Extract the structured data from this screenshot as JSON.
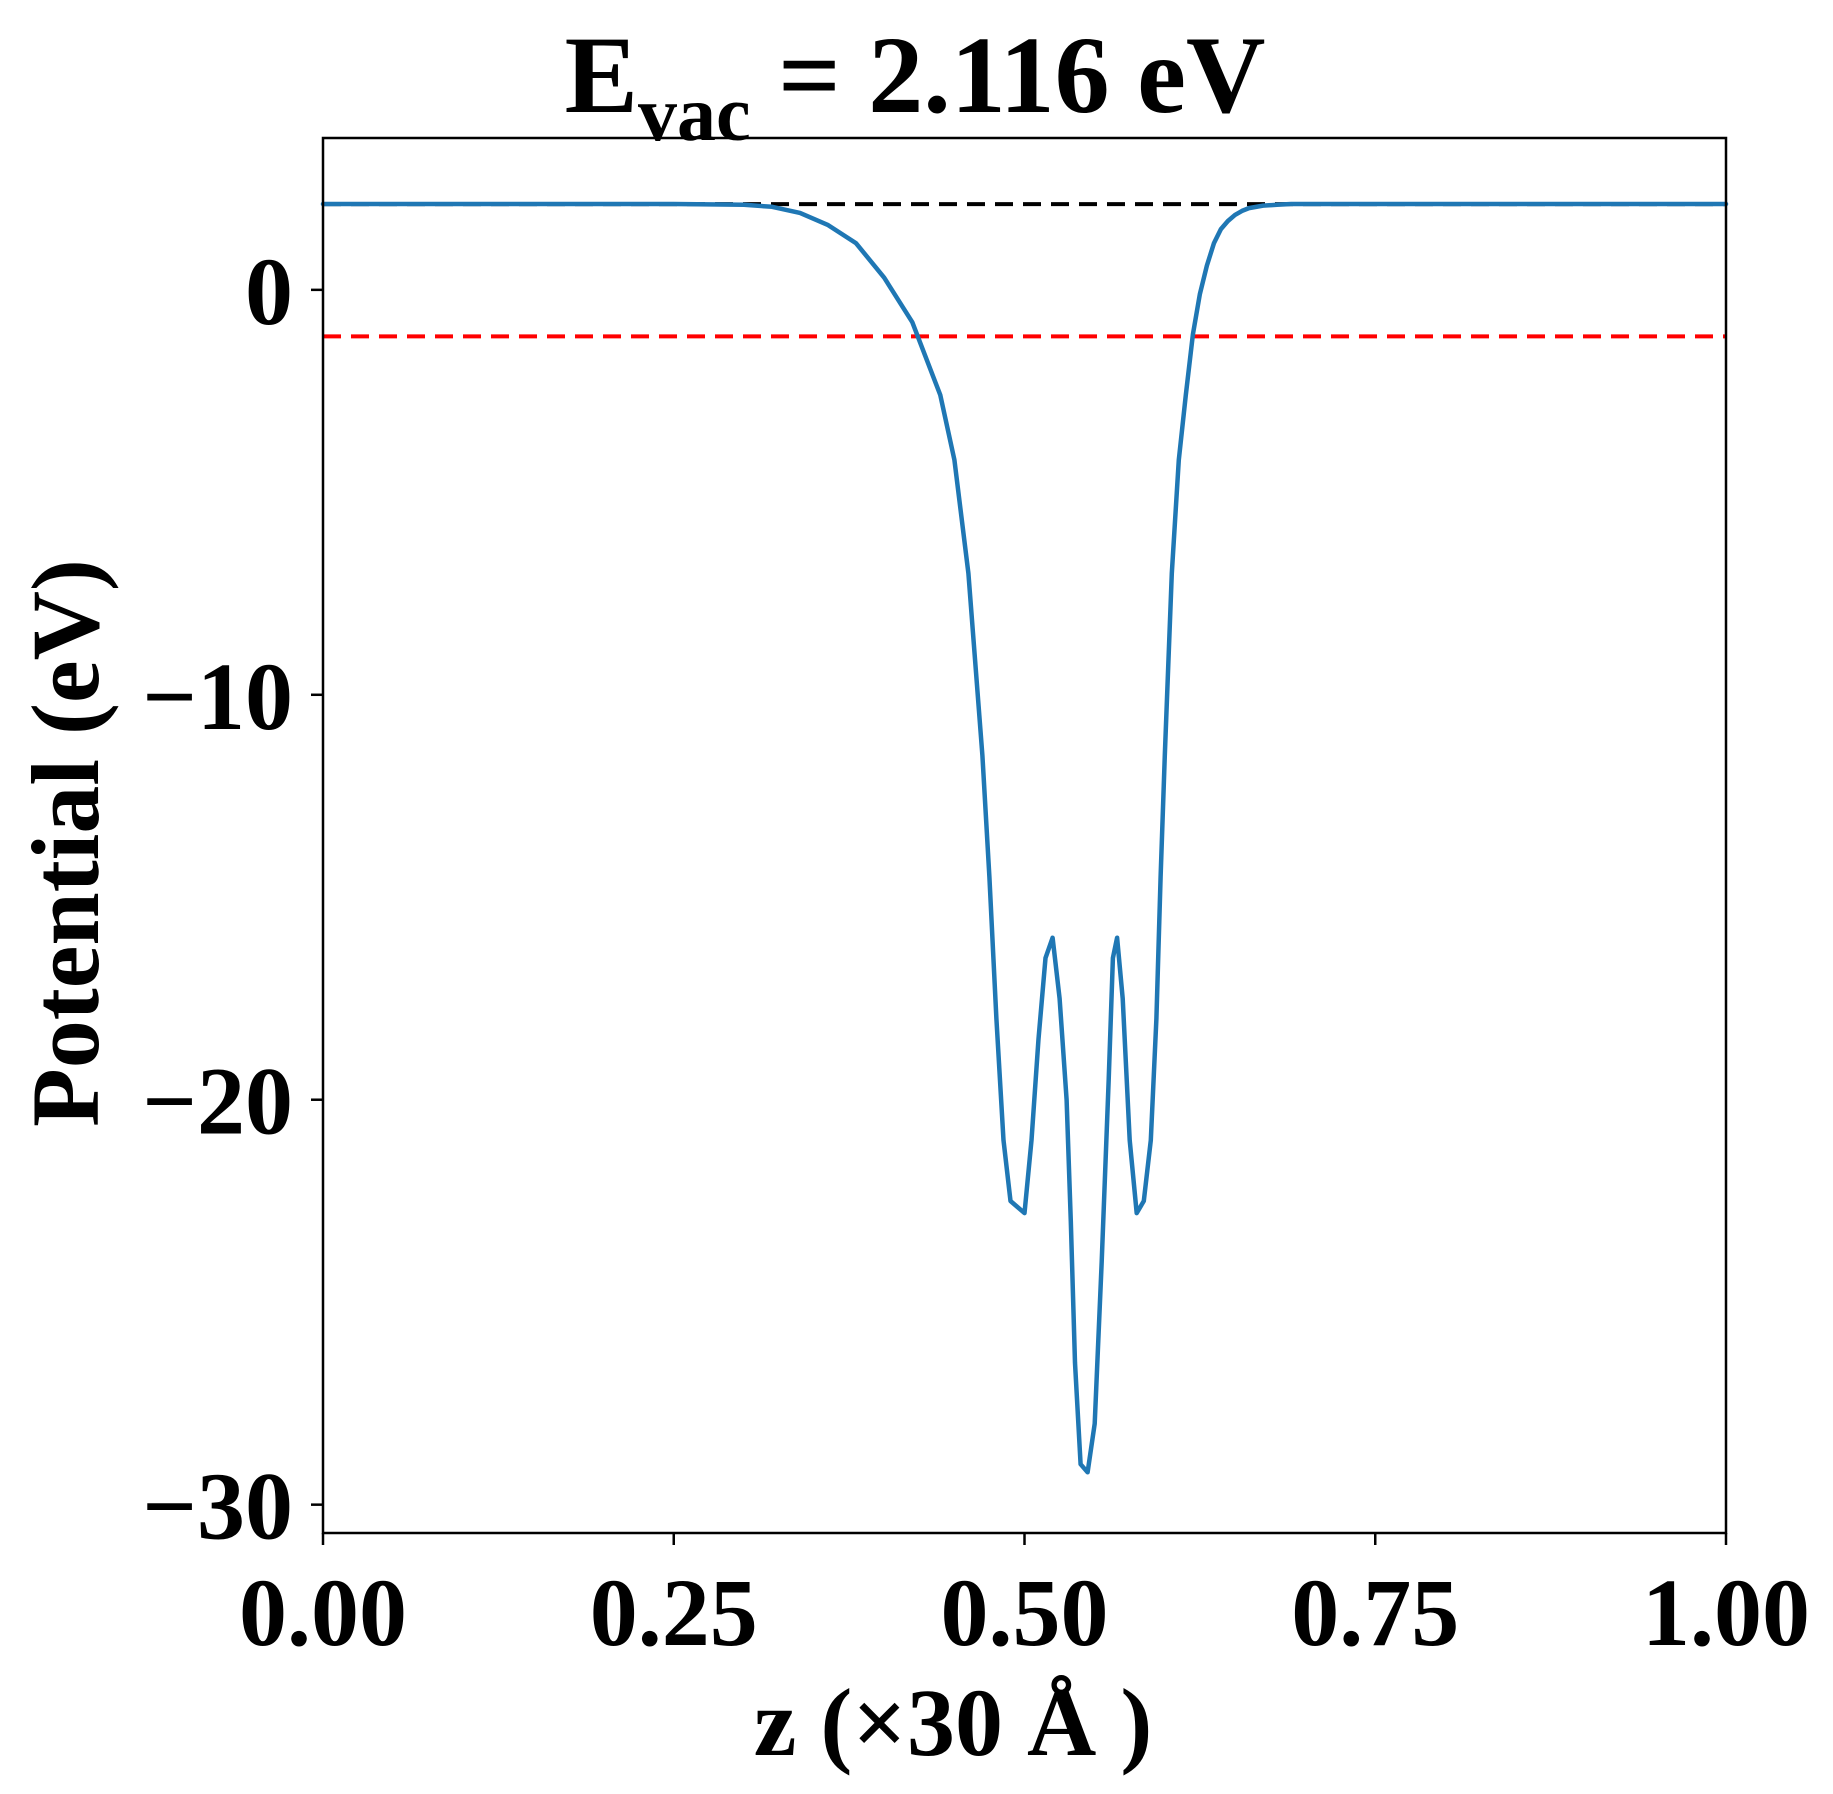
{
  "chart_data": {
    "type": "line",
    "title": {
      "main": "E",
      "subscript": "vac",
      "rest": " = 2.116 eV"
    },
    "xlabel": "z (×30 Å )",
    "ylabel": "Potential (eV)",
    "xlim": [
      0.0,
      1.0
    ],
    "ylim": [
      -30.7,
      3.75
    ],
    "x_ticks": [
      {
        "value": 0.0,
        "label": "0.00"
      },
      {
        "value": 0.25,
        "label": "0.25"
      },
      {
        "value": 0.5,
        "label": "0.50"
      },
      {
        "value": 0.75,
        "label": "0.75"
      },
      {
        "value": 1.0,
        "label": "1.00"
      }
    ],
    "y_ticks": [
      {
        "value": 0,
        "label": "0"
      },
      {
        "value": -10,
        "label": "−10"
      },
      {
        "value": -20,
        "label": "−20"
      },
      {
        "value": -30,
        "label": "−30"
      }
    ],
    "grid": false,
    "series": [
      {
        "color": "#1f77b4",
        "x": [
          0.0,
          0.05,
          0.1,
          0.15,
          0.2,
          0.25,
          0.3,
          0.32,
          0.34,
          0.36,
          0.38,
          0.4,
          0.42,
          0.44,
          0.45,
          0.46,
          0.47,
          0.475,
          0.48,
          0.485,
          0.49,
          0.5,
          0.505,
          0.51,
          0.515,
          0.52,
          0.525,
          0.53,
          0.533,
          0.536,
          0.54,
          0.545,
          0.55,
          0.555,
          0.56,
          0.563,
          0.566,
          0.57,
          0.575,
          0.58,
          0.585,
          0.59,
          0.594,
          0.597,
          0.6,
          0.605,
          0.61,
          0.615,
          0.62,
          0.625,
          0.63,
          0.635,
          0.64,
          0.645,
          0.65,
          0.655,
          0.66,
          0.67,
          0.68,
          0.69,
          0.7,
          0.72,
          0.74,
          0.76,
          0.78,
          0.8,
          0.85,
          0.9,
          0.95,
          1.0
        ],
        "y": [
          2.12,
          2.12,
          2.12,
          2.12,
          2.12,
          2.12,
          2.1,
          2.05,
          1.9,
          1.6,
          1.15,
          0.3,
          -0.8,
          -2.6,
          -4.2,
          -7.0,
          -11.5,
          -14.5,
          -18.0,
          -21.0,
          -22.5,
          -22.8,
          -21.0,
          -18.5,
          -16.5,
          -16.0,
          -17.5,
          -20.0,
          -23.0,
          -26.5,
          -29.0,
          -29.2,
          -28.0,
          -24.0,
          -19.5,
          -16.5,
          -16.0,
          -17.5,
          -21.0,
          -22.8,
          -22.5,
          -21.0,
          -18.0,
          -14.5,
          -11.5,
          -7.0,
          -4.2,
          -2.6,
          -1.1,
          -0.1,
          0.6,
          1.15,
          1.5,
          1.7,
          1.85,
          1.95,
          2.02,
          2.08,
          2.1,
          2.12,
          2.12,
          2.12,
          2.12,
          2.12,
          2.12,
          2.12,
          2.12,
          2.12,
          2.12,
          2.12
        ]
      }
    ],
    "reference_lines": [
      {
        "kind": "vacuum",
        "y": 2.116,
        "color": "#000000",
        "dash": true
      },
      {
        "kind": "fermi",
        "y": -1.15,
        "color": "#ff0000",
        "dash": true
      }
    ]
  }
}
